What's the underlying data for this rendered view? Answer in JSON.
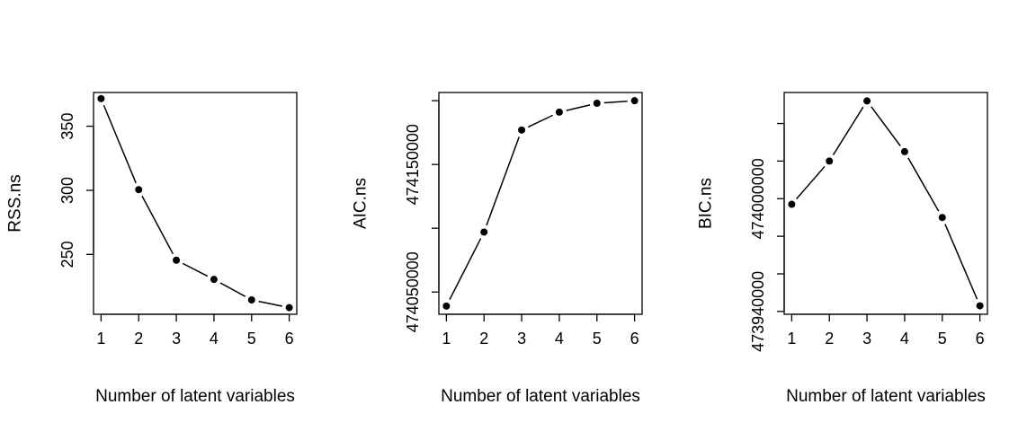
{
  "chart_data": [
    {
      "type": "line",
      "x": [
        1,
        2,
        3,
        4,
        5,
        6
      ],
      "y": [
        371.5,
        300.5,
        245.5,
        230.5,
        214.5,
        208.5
      ],
      "xlabel": "Number of latent variables",
      "ylabel": "RSS.ns",
      "xlim": [
        0.8,
        6.2
      ],
      "ylim": [
        203.3,
        376.3
      ],
      "xticks": [
        1,
        2,
        3,
        4,
        5,
        6
      ],
      "xtick_labels": [
        "1",
        "2",
        "3",
        "4",
        "5",
        "6"
      ],
      "yticks": [
        250,
        300,
        350
      ],
      "ytick_labels": [
        "250",
        "300",
        "350"
      ],
      "grid": false,
      "legend": "none"
    },
    {
      "type": "line",
      "x": [
        1,
        2,
        3,
        4,
        5,
        6
      ],
      "y": [
        474039000,
        474097000,
        474177000,
        474191000,
        474198000,
        474200000
      ],
      "xlabel": "Number of latent variables",
      "ylabel": "AIC.ns",
      "xlim": [
        0.8,
        6.2
      ],
      "ylim": [
        474032560,
        474206440
      ],
      "xticks": [
        1,
        2,
        3,
        4,
        5,
        6
      ],
      "xtick_labels": [
        "1",
        "2",
        "3",
        "4",
        "5",
        "6"
      ],
      "yticks": [
        474050000,
        474100000,
        474150000,
        474200000
      ],
      "ytick_labels": [
        "474050000",
        "",
        "474150000",
        ""
      ],
      "grid": false,
      "legend": "none"
    },
    {
      "type": "line",
      "x": [
        1,
        2,
        3,
        4,
        5,
        6
      ],
      "y": [
        473997000,
        474020000,
        474052000,
        474025000,
        473990000,
        473943000
      ],
      "xlabel": "Number of latent variables",
      "ylabel": "BIC.ns",
      "xlim": [
        0.8,
        6.2
      ],
      "ylim": [
        473938500,
        474056500
      ],
      "xticks": [
        1,
        2,
        3,
        4,
        5,
        6
      ],
      "xtick_labels": [
        "1",
        "2",
        "3",
        "4",
        "5",
        "6"
      ],
      "yticks": [
        473940000,
        473960000,
        473980000,
        474000000,
        474020000,
        474040000
      ],
      "ytick_labels": [
        "473940000",
        "",
        "",
        "474000000",
        "",
        ""
      ],
      "grid": false,
      "legend": "none"
    }
  ]
}
